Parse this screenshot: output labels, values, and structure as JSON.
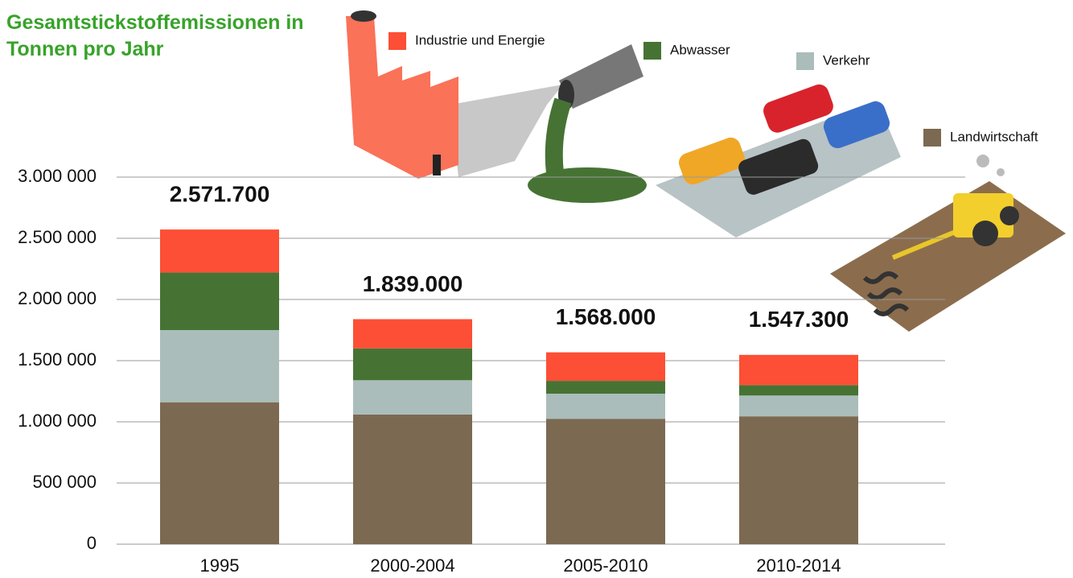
{
  "chart_data": {
    "type": "stacked-bar",
    "title": "Gesamtstickstoffemissionen in Tonnen pro Jahr",
    "categories": [
      "1995",
      "2000-2004",
      "2005-2010",
      "2010-2014"
    ],
    "series": [
      {
        "name": "Landwirtschaft",
        "color": "#7b6a51",
        "values": [
          1160000,
          1060000,
          1025000,
          1045000
        ]
      },
      {
        "name": "Verkehr",
        "color": "#aabdbb",
        "values": [
          590000,
          280000,
          205000,
          170000
        ]
      },
      {
        "name": "Abwasser",
        "color": "#467334",
        "values": [
          470000,
          260000,
          105000,
          85000
        ]
      },
      {
        "name": "Industrie und Energie",
        "color": "#fc4f35",
        "values": [
          351700,
          239000,
          233000,
          247300
        ]
      }
    ],
    "totals": [
      2571700,
      1839000,
      1568000,
      1547300
    ],
    "total_labels": [
      "2.571.700",
      "1.839.000",
      "1.568.000",
      "1.547.300"
    ],
    "ylim": [
      0,
      3000000
    ],
    "yticks": [
      0,
      {
        "value": 500000,
        "label": "500 000"
      },
      {
        "value": 1000000,
        "label": "1.000 000"
      },
      {
        "value": 1500000,
        "label": "1.500 000"
      },
      {
        "value": 2000000,
        "label": "2.000 000"
      },
      {
        "value": 2500000,
        "label": "2.500 000"
      },
      {
        "value": 3000000,
        "label": "3.000 000"
      }
    ],
    "grid": true
  }
}
